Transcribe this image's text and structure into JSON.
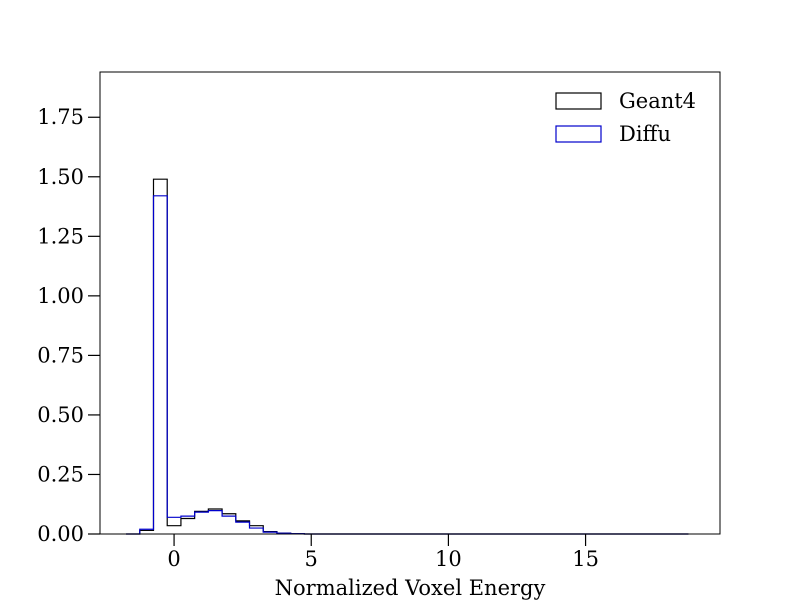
{
  "chart_data": {
    "type": "histogram",
    "title": "",
    "xlabel": "Normalized Voxel Energy",
    "ylabel": "",
    "xlim": [
      -2.7,
      19.9
    ],
    "ylim": [
      0,
      1.94
    ],
    "xticks": [
      0,
      5,
      10,
      15
    ],
    "xtick_labels": [
      "0",
      "5",
      "10",
      "15"
    ],
    "yticks": [
      0,
      0.25,
      0.5,
      0.75,
      1.0,
      1.25,
      1.5,
      1.75
    ],
    "ytick_labels": [
      "0.00",
      "0.25",
      "0.50",
      "0.75",
      "1.00",
      "1.25",
      "1.50",
      "1.75"
    ],
    "grid": false,
    "legend_position": "top-right",
    "bin_edges": [
      -1.75,
      -1.25,
      -0.75,
      -0.25,
      0.25,
      0.75,
      1.25,
      1.75,
      2.25,
      2.75,
      3.25,
      3.75,
      4.25,
      4.75,
      5.25,
      18.75
    ],
    "series": [
      {
        "name": "Geant4",
        "color": "#000000",
        "values": [
          0.0,
          0.015,
          1.49,
          0.035,
          0.065,
          0.095,
          0.105,
          0.085,
          0.055,
          0.035,
          0.01,
          0.004,
          0.001,
          0.0,
          0.0
        ]
      },
      {
        "name": "Diffu",
        "color": "#0000cc",
        "values": [
          0.0,
          0.02,
          1.42,
          0.07,
          0.075,
          0.092,
          0.098,
          0.075,
          0.05,
          0.025,
          0.008,
          0.003,
          0.001,
          0.0,
          0.0
        ]
      }
    ]
  }
}
